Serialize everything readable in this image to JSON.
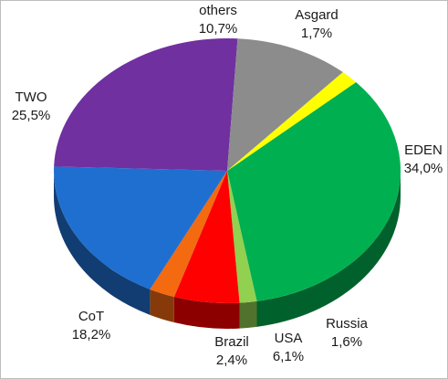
{
  "chart_data": {
    "type": "pie",
    "style": "3d",
    "title": "",
    "slices": [
      {
        "label": "EDEN",
        "value_text": "34,0%",
        "value": 34.0,
        "color": "#00b050"
      },
      {
        "label": "Russia",
        "value_text": "1,6%",
        "value": 1.6,
        "color": "#92d050"
      },
      {
        "label": "USA",
        "value_text": "6,1%",
        "value": 6.1,
        "color": "#ff0000"
      },
      {
        "label": "Brazil",
        "value_text": "2,4%",
        "value": 2.4,
        "color": "#f36a10"
      },
      {
        "label": "CoT",
        "value_text": "18,2%",
        "value": 18.2,
        "color": "#1f6fd0"
      },
      {
        "label": "TWO",
        "value_text": "25,5%",
        "value": 25.5,
        "color": "#7030a0"
      },
      {
        "label": "others",
        "value_text": "10,7%",
        "value": 10.7,
        "color": "#8c8c8c"
      },
      {
        "label": "Asgard",
        "value_text": "1,7%",
        "value": 1.7,
        "color": "#ffff00"
      }
    ]
  }
}
